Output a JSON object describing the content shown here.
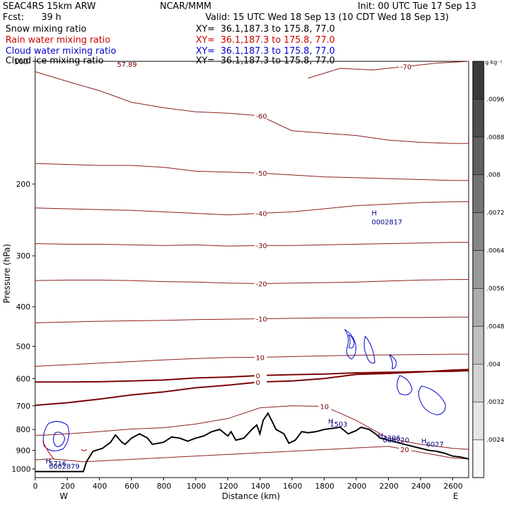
{
  "header": {
    "model": "SEAC4RS 15km ARW",
    "org": "NCAR/MMM",
    "init": "Init: 00 UTC Tue 17 Sep 13",
    "fcst_label": "Fcst:",
    "fcst_value": "39 h",
    "valid": "Valid: 15 UTC Wed 18 Sep 13 (10 CDT Wed 18 Sep 13)"
  },
  "fields": [
    {
      "name": "Snow mixing ratio",
      "xy": "XY=  36.1,187.3 to 175.8, 77.0",
      "color": "#000000"
    },
    {
      "name": "Rain water mixing ratio",
      "xy": "XY=  36.1,187.3 to 175.8, 77.0",
      "color": "#cc0000"
    },
    {
      "name": "Cloud water mixing ratio",
      "xy": "XY=  36.1,187.3 to 175.8, 77.0",
      "color": "#0000cc"
    },
    {
      "name": "Cloud ice mixing ratio",
      "xy": "XY=  36.1,187.3 to 175.8, 77.0",
      "color": "#000000"
    }
  ],
  "colorbar": {
    "unit": "g kg⁻¹",
    "labels": [
      ".0096",
      ".0088",
      ".008",
      ".0072",
      ".0064",
      ".0056",
      ".0048",
      ".004",
      ".0032",
      ".0024"
    ]
  },
  "chart_data": {
    "type": "line",
    "xlabel": "Distance (km)",
    "ylabel": "Pressure (hPa)",
    "xlim": [
      0,
      2700
    ],
    "ylim": [
      1050,
      100
    ],
    "yscale": "log",
    "x_ticks": [
      "0",
      "200",
      "400",
      "600",
      "800",
      "1000",
      "1200",
      "1400",
      "1600",
      "1800",
      "2000",
      "2200",
      "2400",
      "2600"
    ],
    "y_ticks": [
      "200",
      "300",
      "400",
      "500",
      "600",
      "700",
      "800",
      "900",
      "1000"
    ],
    "y_top_label": "100",
    "endpoints": {
      "left": "W",
      "right": "E"
    },
    "temperature_contours": [
      {
        "label": "-70",
        "values": [
          [
            1700,
            110
          ],
          [
            1900,
            104
          ],
          [
            2100,
            105
          ],
          [
            2300,
            103
          ],
          [
            2500,
            101
          ],
          [
            2700,
            100
          ]
        ]
      },
      {
        "label": "-60",
        "values": [
          [
            0,
            106
          ],
          [
            200,
            112
          ],
          [
            400,
            118
          ],
          [
            600,
            126
          ],
          [
            800,
            130
          ],
          [
            1000,
            133
          ],
          [
            1200,
            134
          ],
          [
            1400,
            136
          ],
          [
            1600,
            148
          ],
          [
            1800,
            150
          ],
          [
            2000,
            152
          ],
          [
            2200,
            156
          ],
          [
            2400,
            158
          ],
          [
            2600,
            159
          ],
          [
            2700,
            159
          ]
        ]
      },
      {
        "label": "-50",
        "values": [
          [
            0,
            178
          ],
          [
            200,
            179
          ],
          [
            400,
            180
          ],
          [
            600,
            180
          ],
          [
            800,
            182
          ],
          [
            1000,
            186
          ],
          [
            1200,
            187
          ],
          [
            1400,
            188
          ],
          [
            1600,
            190
          ],
          [
            1800,
            192
          ],
          [
            2000,
            193
          ],
          [
            2200,
            194
          ],
          [
            2400,
            195
          ],
          [
            2600,
            196
          ],
          [
            2700,
            196
          ]
        ]
      },
      {
        "label": "-40",
        "values": [
          [
            0,
            229
          ],
          [
            200,
            230
          ],
          [
            400,
            231
          ],
          [
            600,
            232
          ],
          [
            800,
            234
          ],
          [
            1000,
            236
          ],
          [
            1200,
            238
          ],
          [
            1400,
            236
          ],
          [
            1600,
            234
          ],
          [
            1800,
            230
          ],
          [
            2000,
            226
          ],
          [
            2200,
            224
          ],
          [
            2400,
            222
          ],
          [
            2600,
            221
          ],
          [
            2700,
            221
          ]
        ]
      },
      {
        "label": "-30",
        "values": [
          [
            0,
            280
          ],
          [
            200,
            281
          ],
          [
            400,
            281
          ],
          [
            600,
            282
          ],
          [
            800,
            283
          ],
          [
            1000,
            282
          ],
          [
            1200,
            284
          ],
          [
            1400,
            283
          ],
          [
            1600,
            283
          ],
          [
            1800,
            282
          ],
          [
            2000,
            281
          ],
          [
            2200,
            280
          ],
          [
            2400,
            279
          ],
          [
            2600,
            278
          ],
          [
            2700,
            278
          ]
        ]
      },
      {
        "label": "-20",
        "values": [
          [
            0,
            345
          ],
          [
            200,
            344
          ],
          [
            400,
            344
          ],
          [
            600,
            345
          ],
          [
            800,
            347
          ],
          [
            1000,
            348
          ],
          [
            1200,
            350
          ],
          [
            1400,
            351
          ],
          [
            1600,
            350
          ],
          [
            1800,
            349
          ],
          [
            2000,
            348
          ],
          [
            2200,
            346
          ],
          [
            2400,
            344
          ],
          [
            2600,
            343
          ],
          [
            2700,
            343
          ]
        ]
      },
      {
        "label": "-10",
        "values": [
          [
            0,
            438
          ],
          [
            200,
            436
          ],
          [
            400,
            434
          ],
          [
            600,
            433
          ],
          [
            800,
            432
          ],
          [
            1000,
            430
          ],
          [
            1200,
            429
          ],
          [
            1400,
            428
          ],
          [
            1600,
            427
          ],
          [
            1800,
            426
          ],
          [
            2000,
            426
          ],
          [
            2200,
            425
          ],
          [
            2400,
            425
          ],
          [
            2600,
            424
          ],
          [
            2700,
            424
          ]
        ]
      },
      {
        "label": "10",
        "values": [
          [
            0,
            560
          ],
          [
            200,
            555
          ],
          [
            400,
            550
          ],
          [
            600,
            545
          ],
          [
            800,
            540
          ],
          [
            1000,
            536
          ],
          [
            1200,
            533
          ],
          [
            1400,
            532
          ],
          [
            1600,
            530
          ],
          [
            1800,
            528
          ],
          [
            2000,
            526
          ],
          [
            2200,
            525
          ],
          [
            2400,
            524
          ],
          [
            2600,
            523
          ],
          [
            2700,
            523
          ]
        ]
      },
      {
        "label": "0",
        "values": [
          [
            0,
            698
          ],
          [
            200,
            688
          ],
          [
            400,
            674
          ],
          [
            600,
            658
          ],
          [
            800,
            647
          ],
          [
            1000,
            632
          ],
          [
            1200,
            623
          ],
          [
            1400,
            612
          ],
          [
            1600,
            608
          ],
          [
            1800,
            600
          ],
          [
            2000,
            586
          ],
          [
            2200,
            583
          ],
          [
            2400,
            578
          ],
          [
            2600,
            572
          ],
          [
            2700,
            570
          ]
        ]
      },
      {
        "label": "0",
        "values": [
          [
            0,
            612
          ],
          [
            200,
            612
          ],
          [
            400,
            611
          ],
          [
            600,
            608
          ],
          [
            800,
            605
          ],
          [
            1000,
            598
          ],
          [
            1200,
            595
          ],
          [
            1400,
            590
          ],
          [
            1600,
            587
          ],
          [
            1800,
            585
          ],
          [
            2000,
            581
          ],
          [
            2200,
            579
          ],
          [
            2400,
            577
          ],
          [
            2600,
            576
          ],
          [
            2700,
            574
          ]
        ]
      },
      {
        "label": "10",
        "values": [
          [
            0,
            828
          ],
          [
            200,
            820
          ],
          [
            400,
            810
          ],
          [
            600,
            798
          ],
          [
            800,
            792
          ],
          [
            1000,
            776
          ],
          [
            1200,
            752
          ],
          [
            1400,
            708
          ],
          [
            1600,
            700
          ],
          [
            1800,
            702
          ],
          [
            1900,
            730
          ],
          [
            2000,
            760
          ],
          [
            2100,
            800
          ],
          [
            2200,
            840
          ],
          [
            2300,
            855
          ],
          [
            2400,
            870
          ],
          [
            2500,
            880
          ],
          [
            2600,
            890
          ],
          [
            2700,
            895
          ]
        ]
      },
      {
        "label": "20",
        "values": [
          [
            0,
            950
          ],
          [
            100,
            944
          ],
          [
            200,
            952
          ],
          [
            300,
            960
          ],
          [
            2200,
            880
          ],
          [
            2300,
            895
          ],
          [
            2400,
            910
          ],
          [
            2500,
            925
          ],
          [
            2600,
            940
          ],
          [
            2700,
            945
          ]
        ]
      }
    ],
    "terrain": [
      [
        0,
        1015
      ],
      [
        100,
        1015
      ],
      [
        200,
        1015
      ],
      [
        300,
        1015
      ],
      [
        320,
        960
      ],
      [
        360,
        905
      ],
      [
        420,
        890
      ],
      [
        470,
        860
      ],
      [
        500,
        825
      ],
      [
        540,
        860
      ],
      [
        560,
        870
      ],
      [
        600,
        840
      ],
      [
        650,
        820
      ],
      [
        700,
        840
      ],
      [
        730,
        870
      ],
      [
        800,
        860
      ],
      [
        850,
        835
      ],
      [
        900,
        840
      ],
      [
        950,
        855
      ],
      [
        1000,
        840
      ],
      [
        1050,
        830
      ],
      [
        1100,
        810
      ],
      [
        1150,
        800
      ],
      [
        1200,
        830
      ],
      [
        1220,
        810
      ],
      [
        1250,
        850
      ],
      [
        1300,
        840
      ],
      [
        1350,
        800
      ],
      [
        1380,
        780
      ],
      [
        1400,
        820
      ],
      [
        1420,
        760
      ],
      [
        1450,
        730
      ],
      [
        1480,
        770
      ],
      [
        1500,
        800
      ],
      [
        1550,
        820
      ],
      [
        1580,
        865
      ],
      [
        1620,
        850
      ],
      [
        1660,
        810
      ],
      [
        1700,
        815
      ],
      [
        1750,
        810
      ],
      [
        1800,
        800
      ],
      [
        1850,
        795
      ],
      [
        1900,
        790
      ],
      [
        1950,
        820
      ],
      [
        2000,
        805
      ],
      [
        2030,
        790
      ],
      [
        2080,
        800
      ],
      [
        2120,
        820
      ],
      [
        2150,
        840
      ],
      [
        2200,
        850
      ],
      [
        2250,
        860
      ],
      [
        2300,
        870
      ],
      [
        2350,
        880
      ],
      [
        2400,
        890
      ],
      [
        2450,
        900
      ],
      [
        2500,
        905
      ],
      [
        2550,
        915
      ],
      [
        2600,
        930
      ],
      [
        2650,
        935
      ],
      [
        2700,
        945
      ]
    ],
    "annotations": [
      {
        "text": "H",
        "x": 2130,
        "p": 235
      },
      {
        "text": "0002817",
        "x": 2130,
        "p": 247
      },
      {
        "text": "H",
        "x": 1860,
        "p": 762
      },
      {
        "text": "1503",
        "x": 1870,
        "p": 775
      },
      {
        "text": "H",
        "x": 2170,
        "p": 828
      },
      {
        "text": "4306",
        "x": 2200,
        "p": 838
      },
      {
        "text": "000220",
        "x": 2200,
        "p": 848
      },
      {
        "text": "H",
        "x": 2440,
        "p": 852
      },
      {
        "text": "6027",
        "x": 2470,
        "p": 867
      },
      {
        "text": "H",
        "x": 100,
        "p": 955
      },
      {
        "text": "5716",
        "x": 120,
        "p": 967
      },
      {
        "text": "0002879",
        "x": 120,
        "p": 982
      }
    ],
    "max_label": "57.89"
  }
}
